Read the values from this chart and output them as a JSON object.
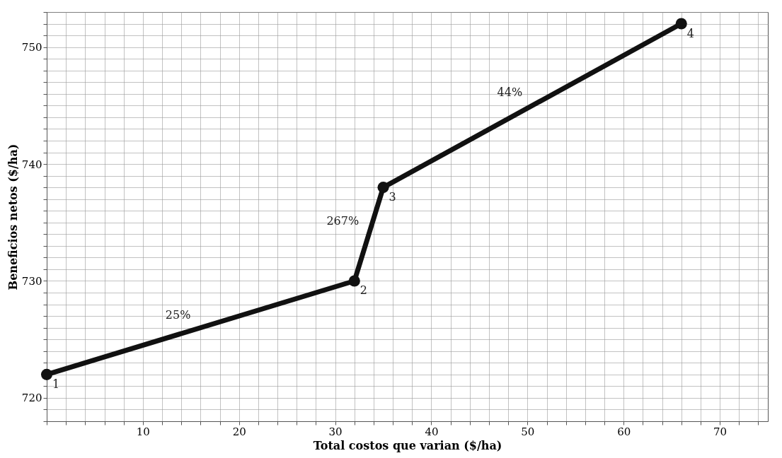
{
  "chart_data": {
    "type": "line",
    "xlabel": "Total costos que varian ($/ha)",
    "ylabel": "Beneficios netos ($/ha)",
    "x": [
      0,
      32,
      35,
      66
    ],
    "series": [
      {
        "color": "#111111",
        "values": [
          722,
          730,
          738,
          752
        ]
      }
    ],
    "xlim": [
      0,
      75
    ],
    "ylim": [
      718,
      753
    ],
    "xticks": [
      {
        "value": 0,
        "label": null
      },
      {
        "value": 2,
        "label": null
      },
      {
        "value": 4,
        "label": null
      },
      {
        "value": 6,
        "label": null
      },
      {
        "value": 8,
        "label": null
      },
      10,
      {
        "value": 12,
        "label": null
      },
      {
        "value": 14,
        "label": null
      },
      {
        "value": 16,
        "label": null
      },
      {
        "value": 18,
        "label": null
      },
      20,
      {
        "value": 22,
        "label": null
      },
      {
        "value": 24,
        "label": null
      },
      {
        "value": 26,
        "label": null
      },
      {
        "value": 28,
        "label": null
      },
      30,
      {
        "value": 32,
        "label": null
      },
      {
        "value": 34,
        "label": null
      },
      {
        "value": 36,
        "label": null
      },
      {
        "value": 38,
        "label": null
      },
      40,
      {
        "value": 42,
        "label": null
      },
      {
        "value": 44,
        "label": null
      },
      {
        "value": 46,
        "label": null
      },
      {
        "value": 48,
        "label": null
      },
      50,
      {
        "value": 52,
        "label": null
      },
      {
        "value": 54,
        "label": null
      },
      {
        "value": 56,
        "label": null
      },
      {
        "value": 58,
        "label": null
      },
      60,
      {
        "value": 62,
        "label": null
      },
      {
        "value": 64,
        "label": null
      },
      {
        "value": 66,
        "label": null
      },
      {
        "value": 68,
        "label": null
      },
      70,
      {
        "value": 72,
        "label": null
      },
      {
        "value": 74,
        "label": null
      }
    ],
    "yticks": [
      {
        "value": 718,
        "label": null
      },
      {
        "value": 719,
        "label": null
      },
      720,
      {
        "value": 721,
        "label": null
      },
      {
        "value": 722,
        "label": null
      },
      {
        "value": 723,
        "label": null
      },
      {
        "value": 724,
        "label": null
      },
      {
        "value": 725,
        "label": null
      },
      {
        "value": 726,
        "label": null
      },
      {
        "value": 727,
        "label": null
      },
      {
        "value": 728,
        "label": null
      },
      {
        "value": 729,
        "label": null
      },
      730,
      {
        "value": 731,
        "label": null
      },
      {
        "value": 732,
        "label": null
      },
      {
        "value": 733,
        "label": null
      },
      {
        "value": 734,
        "label": null
      },
      {
        "value": 735,
        "label": null
      },
      {
        "value": 736,
        "label": null
      },
      {
        "value": 737,
        "label": null
      },
      {
        "value": 738,
        "label": null
      },
      {
        "value": 739,
        "label": null
      },
      740,
      {
        "value": 741,
        "label": null
      },
      {
        "value": 742,
        "label": null
      },
      {
        "value": 743,
        "label": null
      },
      {
        "value": 744,
        "label": null
      },
      {
        "value": 745,
        "label": null
      },
      {
        "value": 746,
        "label": null
      },
      {
        "value": 747,
        "label": null
      },
      {
        "value": 748,
        "label": null
      },
      {
        "value": 749,
        "label": null
      },
      750,
      {
        "value": 751,
        "label": null
      },
      {
        "value": 752,
        "label": null
      },
      {
        "value": 753,
        "label": null
      }
    ],
    "grid": true,
    "marker": "circle",
    "line_style": "solid",
    "annotations": [
      {
        "text": "1",
        "x": 0,
        "y": 722
      },
      {
        "text": "2",
        "x": 32,
        "y": 730
      },
      {
        "text": "3",
        "x": 35,
        "y": 738
      },
      {
        "text": "4",
        "x": 66,
        "y": 752
      },
      "25%",
      "267%",
      "44%"
    ]
  }
}
